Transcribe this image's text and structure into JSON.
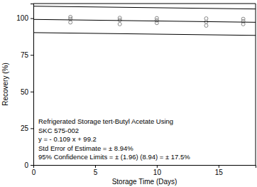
{
  "chart_data": {
    "type": "scatter",
    "x_label": "Storage Time (Days)",
    "y_label": "Recovery (%)",
    "xlim": [
      0,
      18
    ],
    "xticks": [
      0,
      5,
      10,
      15
    ],
    "ylim": [
      0,
      110
    ],
    "yticks": [
      0,
      25,
      50,
      75,
      100
    ],
    "annotations": [
      "Refrigerated Storage tert-Butyl Acetate Using",
      "SKC 575-002",
      "y = - 0.109 x + 99.2",
      "Std Error of Estimate = ± 8.94%",
      "95% Confidence Limits = ± (1.96) (8.94) = ± 17.5%"
    ],
    "series": [
      {
        "type": "scatter",
        "marker": "circle",
        "color": "#888888",
        "x": [
          3,
          3,
          3,
          7,
          7,
          7,
          10,
          10,
          10,
          14,
          14,
          14,
          17,
          17,
          17
        ],
        "values": [
          100.8,
          99.5,
          97.2,
          100.2,
          98.8,
          96.0,
          100.0,
          98.5,
          96.8,
          99.8,
          97.5,
          95.0,
          99.5,
          98.0,
          96.0
        ]
      },
      {
        "type": "line",
        "line_style": "solid",
        "color": "#000000",
        "x": [
          0,
          18
        ],
        "values": [
          108.2,
          106.3
        ]
      },
      {
        "type": "line",
        "line_style": "solid",
        "color": "#000000",
        "x": [
          0,
          18
        ],
        "values": [
          99.2,
          97.24
        ]
      },
      {
        "type": "line",
        "line_style": "solid",
        "color": "#000000",
        "x": [
          0,
          18
        ],
        "values": [
          90.2,
          88.3
        ]
      }
    ]
  }
}
